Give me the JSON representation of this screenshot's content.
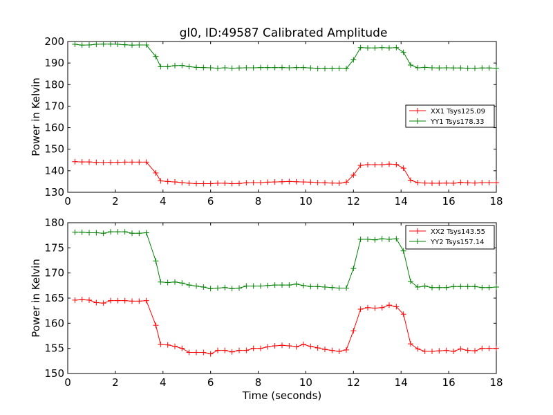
{
  "title": "gl0, ID:49587 Calibrated Amplitude",
  "chart_data": [
    {
      "type": "line",
      "ylabel": "Power in Kelvin",
      "xlabel": "",
      "xlim": [
        0,
        18
      ],
      "ylim": [
        130,
        200
      ],
      "x_ticks": [
        "0",
        "2",
        "4",
        "6",
        "8",
        "10",
        "12",
        "14",
        "16",
        "18"
      ],
      "y_ticks": [
        "130",
        "140",
        "150",
        "160",
        "170",
        "180",
        "190",
        "200"
      ],
      "legend_position": "center-right",
      "x": [
        0.3,
        0.6,
        0.9,
        1.2,
        1.5,
        1.8,
        2.1,
        2.4,
        2.7,
        3.0,
        3.3,
        3.7,
        3.9,
        4.2,
        4.5,
        4.8,
        5.1,
        5.4,
        5.7,
        6.0,
        6.3,
        6.6,
        6.9,
        7.2,
        7.5,
        7.8,
        8.1,
        8.4,
        8.7,
        9.0,
        9.3,
        9.6,
        9.9,
        10.2,
        10.5,
        10.8,
        11.1,
        11.4,
        11.7,
        12.0,
        12.3,
        12.6,
        12.9,
        13.2,
        13.5,
        13.8,
        14.1,
        14.4,
        14.7,
        15.0,
        15.3,
        15.6,
        15.9,
        16.2,
        16.5,
        16.8,
        17.1,
        17.4,
        17.7,
        18.0
      ],
      "series": [
        {
          "name": "XX1 Tsys125.09",
          "color": "#ff0000",
          "values": [
            144.2,
            144.1,
            144.1,
            143.9,
            143.8,
            143.9,
            143.9,
            144.0,
            144.0,
            144.0,
            144.0,
            139.0,
            135.3,
            135.0,
            134.8,
            134.5,
            134.2,
            134.0,
            134.0,
            134.0,
            134.2,
            134.2,
            134.0,
            134.1,
            134.4,
            134.5,
            134.5,
            134.7,
            134.8,
            134.9,
            135.0,
            134.9,
            134.8,
            134.7,
            134.5,
            134.4,
            134.3,
            134.2,
            134.7,
            138.0,
            142.5,
            142.8,
            142.8,
            142.8,
            143.1,
            142.9,
            141.2,
            135.6,
            134.5,
            134.3,
            134.2,
            134.2,
            134.3,
            134.2,
            134.6,
            134.4,
            134.3,
            134.5,
            134.5,
            134.5
          ]
        },
        {
          "name": "YY1 Tsys178.33",
          "color": "#008000",
          "values": [
            198.7,
            198.3,
            198.4,
            198.7,
            198.8,
            198.8,
            198.7,
            198.5,
            198.3,
            198.4,
            198.4,
            193.0,
            188.3,
            188.3,
            188.8,
            188.9,
            188.3,
            188.0,
            187.9,
            187.8,
            187.6,
            187.8,
            187.6,
            187.7,
            187.8,
            187.8,
            187.9,
            187.9,
            187.9,
            187.9,
            187.8,
            187.9,
            187.9,
            187.7,
            187.4,
            187.4,
            187.4,
            187.5,
            187.4,
            191.5,
            197.2,
            197.0,
            197.0,
            197.2,
            197.0,
            197.2,
            195.0,
            189.1,
            187.8,
            188.0,
            187.8,
            187.7,
            187.8,
            187.7,
            187.7,
            187.6,
            187.6,
            187.7,
            187.7,
            187.6
          ]
        }
      ]
    },
    {
      "type": "line",
      "ylabel": "Power in Kelvin",
      "xlabel": "Time (seconds)",
      "xlim": [
        0,
        18
      ],
      "ylim": [
        150,
        180
      ],
      "x_ticks": [
        "0",
        "2",
        "4",
        "6",
        "8",
        "10",
        "12",
        "14",
        "16",
        "18"
      ],
      "y_ticks": [
        "150",
        "155",
        "160",
        "165",
        "170",
        "175",
        "180"
      ],
      "legend_position": "top-right",
      "x": [
        0.3,
        0.6,
        0.9,
        1.2,
        1.5,
        1.8,
        2.1,
        2.4,
        2.7,
        3.0,
        3.3,
        3.7,
        3.9,
        4.2,
        4.5,
        4.8,
        5.1,
        5.4,
        5.7,
        6.0,
        6.3,
        6.6,
        6.9,
        7.2,
        7.5,
        7.8,
        8.1,
        8.4,
        8.7,
        9.0,
        9.3,
        9.6,
        9.9,
        10.2,
        10.5,
        10.8,
        11.1,
        11.4,
        11.7,
        12.0,
        12.3,
        12.6,
        12.9,
        13.2,
        13.5,
        13.8,
        14.1,
        14.4,
        14.7,
        15.0,
        15.3,
        15.6,
        15.9,
        16.2,
        16.5,
        16.8,
        17.1,
        17.4,
        17.7,
        18.0
      ],
      "series": [
        {
          "name": "XX2 Tsys143.55",
          "color": "#ff0000",
          "values": [
            164.6,
            164.7,
            164.6,
            164.1,
            164.0,
            164.5,
            164.5,
            164.5,
            164.4,
            164.4,
            164.5,
            159.6,
            155.8,
            155.7,
            155.4,
            155.0,
            154.2,
            154.2,
            154.2,
            153.9,
            154.6,
            154.6,
            154.3,
            154.6,
            154.6,
            155.0,
            155.0,
            155.3,
            155.5,
            155.6,
            155.5,
            155.3,
            155.8,
            155.4,
            155.1,
            154.8,
            154.6,
            154.4,
            154.7,
            158.5,
            162.8,
            163.1,
            163.0,
            163.1,
            163.6,
            163.3,
            161.8,
            155.9,
            154.9,
            154.4,
            154.4,
            154.5,
            154.6,
            154.4,
            154.9,
            154.6,
            154.5,
            155.0,
            155.0,
            155.0
          ]
        },
        {
          "name": "YY2 Tsys157.14",
          "color": "#008000",
          "values": [
            178.1,
            178.1,
            178.0,
            178.0,
            177.9,
            178.2,
            178.2,
            178.2,
            177.9,
            177.9,
            178.0,
            172.4,
            168.2,
            168.1,
            168.2,
            168.0,
            167.6,
            167.4,
            167.2,
            166.9,
            167.0,
            167.1,
            166.9,
            167.0,
            167.4,
            167.4,
            167.4,
            167.5,
            167.6,
            167.6,
            167.6,
            167.8,
            167.5,
            167.3,
            167.3,
            167.2,
            167.1,
            167.0,
            167.0,
            170.9,
            176.7,
            176.7,
            176.6,
            176.8,
            176.7,
            176.8,
            174.4,
            168.3,
            167.2,
            167.4,
            167.1,
            167.1,
            167.1,
            167.3,
            167.3,
            167.3,
            167.3,
            167.1,
            167.1,
            167.2
          ]
        }
      ]
    }
  ]
}
